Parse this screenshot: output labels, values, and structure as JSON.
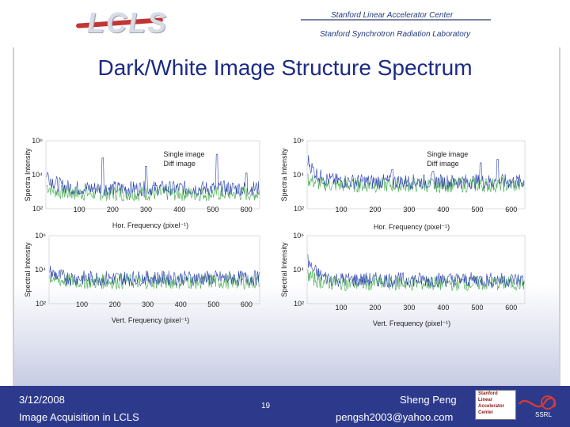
{
  "header": {
    "logo_text": "LCLS",
    "line1": "Stanford Linear Accelerator Center",
    "line2": "Stanford Synchrotron Radiation Laboratory"
  },
  "slide": {
    "title": "Dark/White Image Structure Spectrum"
  },
  "footer": {
    "date": "3/12/2008",
    "subtitle": "Image Acquisition in LCLS",
    "page": "19",
    "author": "Sheng Peng",
    "email": "pengsh2003@yahoo.com",
    "logo_lines": [
      "Stanford",
      "Linear",
      "Accelerator",
      "Center"
    ],
    "ssrl": "SSRL"
  },
  "colors": {
    "footer_bg": "#2d3a8c",
    "title": "#1c2a86",
    "single_series": "#2a3fb0",
    "diff_series": "#3fa84a"
  },
  "chart_data": [
    {
      "id": "dark-hor",
      "type": "line",
      "ylabel": "Spectra Intensity",
      "xlabel": "Hor. Frequency (pixel⁻¹)",
      "xticks": [
        "100",
        "200",
        "300",
        "400",
        "500",
        "600"
      ],
      "ytick_labels": [
        "10⁶",
        "10⁴",
        "10²"
      ],
      "xlim": [
        0,
        640
      ],
      "ylim_log10": [
        2,
        6
      ],
      "log_y": true,
      "legend": [
        "Single image",
        "Diff image"
      ],
      "legend_position": "top-right",
      "series": [
        {
          "name": "Single image",
          "baseline_log10": 3.2,
          "start_log10": 4.2,
          "peaks": [
            [
              170,
              5.0
            ],
            [
              300,
              4.5
            ],
            [
              512,
              5.2
            ],
            [
              600,
              4.1
            ]
          ]
        },
        {
          "name": "Diff image",
          "baseline_log10": 2.9,
          "start_log10": 3.4,
          "peaks": []
        }
      ]
    },
    {
      "id": "white-hor",
      "type": "line",
      "ylabel": "Spectra Intensity",
      "xlabel": "Hor. Frequency (pixel⁻¹)",
      "xticks": [
        "100",
        "200",
        "300",
        "400",
        "500",
        "600"
      ],
      "ytick_labels": [
        "10⁶",
        "10⁴",
        "10²"
      ],
      "xlim": [
        0,
        640
      ],
      "ylim_log10": [
        2,
        6
      ],
      "log_y": true,
      "legend": [
        "Single image",
        "Diff image"
      ],
      "legend_position": "top-right",
      "series": [
        {
          "name": "Single image",
          "baseline_log10": 3.6,
          "start_log10": 5.0,
          "peaks": [
            [
              250,
              4.3
            ],
            [
              370,
              4.2
            ],
            [
              510,
              4.7
            ],
            [
              560,
              4.9
            ]
          ]
        },
        {
          "name": "Diff image",
          "baseline_log10": 3.4,
          "start_log10": 3.8,
          "peaks": []
        }
      ]
    },
    {
      "id": "dark-vert",
      "type": "line",
      "ylabel": "Spectral Intensity",
      "xlabel": "Vert. Frequency (pixel⁻¹)",
      "xticks": [
        "100",
        "200",
        "300",
        "400",
        "500",
        "600"
      ],
      "ytick_labels": [
        "10⁶",
        "10⁴",
        "10²"
      ],
      "xlim": [
        0,
        640
      ],
      "ylim_log10": [
        2,
        6
      ],
      "log_y": true,
      "series": [
        {
          "name": "Single image",
          "baseline_log10": 3.5,
          "start_log10": 3.9,
          "peaks": []
        },
        {
          "name": "Diff image",
          "baseline_log10": 3.3,
          "start_log10": 3.6,
          "peaks": []
        }
      ]
    },
    {
      "id": "white-vert",
      "type": "line",
      "ylabel": "Spectral Intensity",
      "xlabel": "Vert. Frequency (pixel⁻¹)",
      "xticks": [
        "100",
        "200",
        "300",
        "400",
        "500",
        "600"
      ],
      "ytick_labels": [
        "10⁶",
        "10⁴",
        "10²"
      ],
      "xlim": [
        0,
        640
      ],
      "ylim_log10": [
        2,
        6
      ],
      "log_y": true,
      "series": [
        {
          "name": "Single image",
          "baseline_log10": 3.4,
          "start_log10": 4.6,
          "peaks": []
        },
        {
          "name": "Diff image",
          "baseline_log10": 3.2,
          "start_log10": 3.8,
          "peaks": []
        }
      ]
    }
  ]
}
